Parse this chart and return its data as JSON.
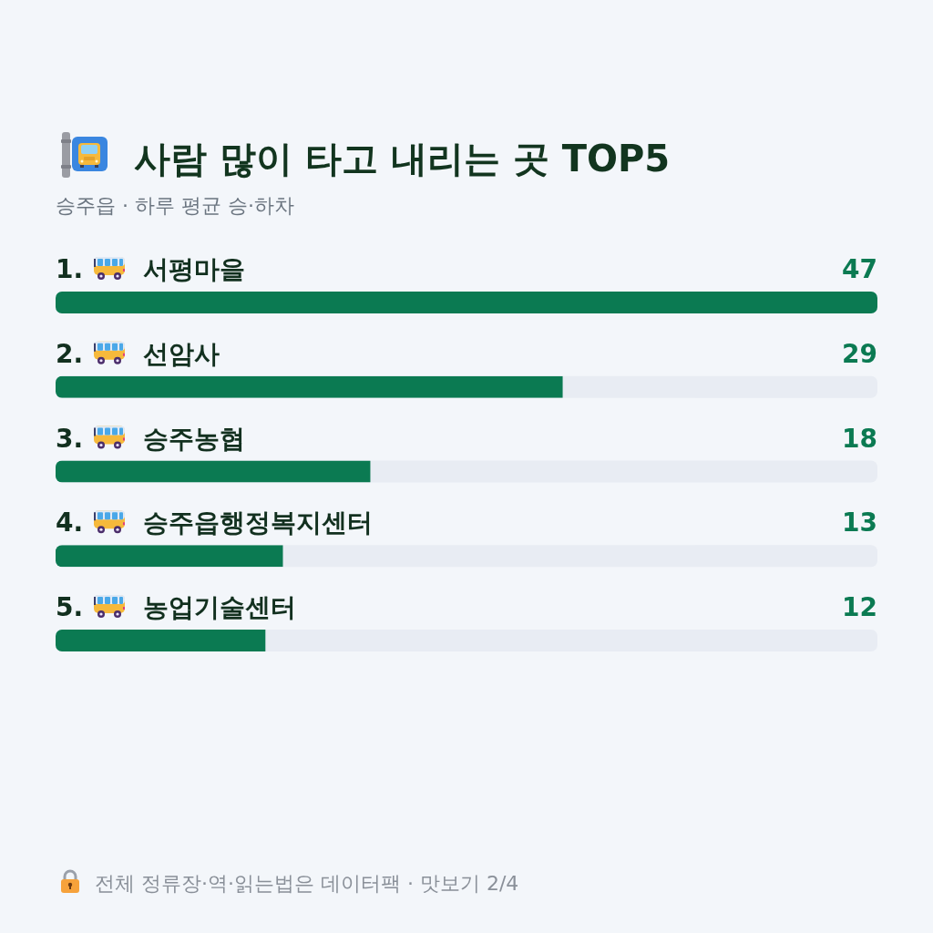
{
  "chart_data": {
    "type": "bar",
    "orientation": "horizontal",
    "title": "사람 많이 타고 내리는 곳 TOP5",
    "subtitle": "승주읍 · 하루 평균 승·하차",
    "categories": [
      "1. 서평마을",
      "2. 선암사",
      "3. 승주농협",
      "4. 승주읍행정복지센터",
      "5. 농업기술센터"
    ],
    "values": [
      47,
      29,
      18,
      13,
      12
    ],
    "color": "#0b7a52",
    "xlim": [
      0,
      47
    ],
    "data_labels": true,
    "tick_labels": "y",
    "annotations": [
      "전체 정류장·역·읽는법은 데이터팩 · 맛보기 2/4"
    ]
  }
}
